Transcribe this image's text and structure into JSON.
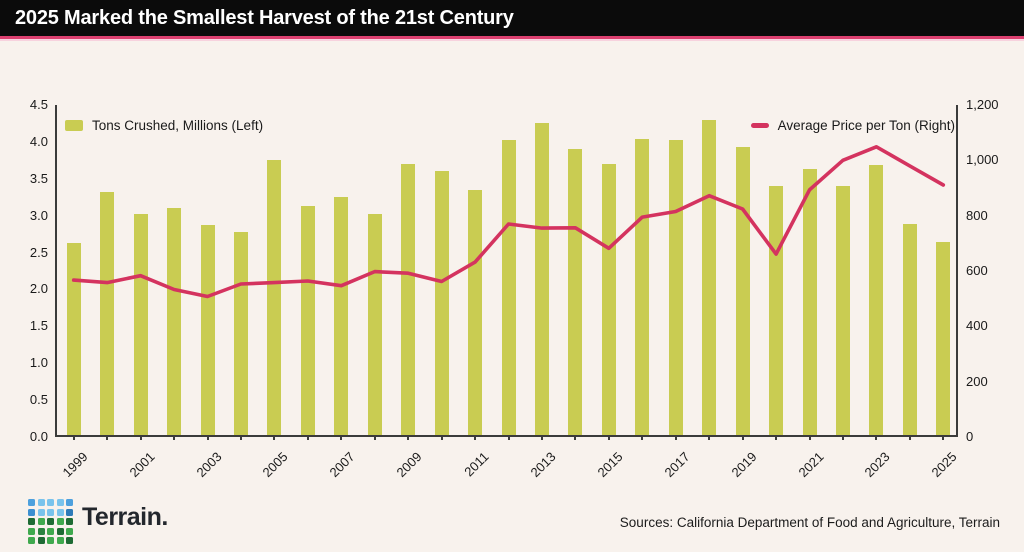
{
  "header": {
    "title": "2025 Marked the Smallest Harvest of the 21st Century"
  },
  "colors": {
    "background": "#f8f2ed",
    "header_bg": "#0b0b0b",
    "accent_pink": "#dd4070",
    "accent_pink_light": "#f7d2de",
    "bar": "#c9cc52",
    "line": "#d4335f",
    "axis": "#3b3b3b"
  },
  "chart_data": {
    "type": "bar",
    "title": "2025 Marked the Smallest Harvest of the 21st Century",
    "categories": [
      1999,
      2000,
      2001,
      2002,
      2003,
      2004,
      2005,
      2006,
      2007,
      2008,
      2009,
      2010,
      2011,
      2012,
      2013,
      2014,
      2015,
      2016,
      2017,
      2018,
      2019,
      2020,
      2021,
      2022,
      2023,
      2024,
      2025
    ],
    "series": [
      {
        "name": "Tons Crushed, Millions (Left)",
        "type": "bar",
        "axis": "left",
        "values": [
          2.6,
          3.3,
          3.0,
          3.08,
          2.85,
          2.75,
          3.73,
          3.11,
          3.22,
          3.0,
          3.67,
          3.58,
          3.32,
          4.0,
          4.23,
          3.88,
          3.67,
          4.01,
          4.0,
          4.27,
          3.9,
          3.38,
          3.61,
          3.37,
          3.66,
          2.86,
          2.62
        ]
      },
      {
        "name": "Average Price per Ton (Right)",
        "type": "line",
        "axis": "right",
        "values": [
          567,
          558,
          583,
          533,
          508,
          553,
          558,
          564,
          547,
          598,
          592,
          562,
          632,
          770,
          755,
          756,
          682,
          795,
          815,
          872,
          824,
          661,
          893,
          1000,
          1049,
          980,
          911
        ]
      }
    ],
    "left_axis": {
      "min": 0,
      "max": 4.5,
      "tick_labels": [
        "4.5",
        "4.0",
        "3.5",
        "3.0",
        "2.5",
        "2.0",
        "1.5",
        "1.0",
        "0.5",
        "0.0"
      ],
      "tick_values": [
        4.5,
        4.0,
        3.5,
        3.0,
        2.5,
        2.0,
        1.5,
        1.0,
        0.5,
        0.0
      ]
    },
    "right_axis": {
      "min": 0,
      "max": 1200,
      "tick_labels": [
        "1,200",
        "1,000",
        "800",
        "600",
        "400",
        "200",
        "0"
      ],
      "tick_values": [
        1200,
        1000,
        800,
        600,
        400,
        200,
        0
      ]
    },
    "x_tick_labels": [
      "1999",
      "2001",
      "2003",
      "2005",
      "2007",
      "2009",
      "2011",
      "2013",
      "2015",
      "2017",
      "2019",
      "2021",
      "2023",
      "2025"
    ],
    "grid": "off",
    "legend_position": "top-left and top-right inside plot"
  },
  "legend": {
    "bar_label": "Tons Crushed, Millions (Left)",
    "line_label": "Average Price per Ton (Right)"
  },
  "footer": {
    "logo_text": "Terrain.",
    "sources": "Sources: California Department of Food and Agriculture, Terrain",
    "logo_grid": [
      [
        "#4da0dd",
        "#79c3ec",
        "#79c3ec",
        "#79c3ec",
        "#4da0dd"
      ],
      [
        "#3c8fd0",
        "#79c3ec",
        "#79c3ec",
        "#79c3ec",
        "#2e7bb8"
      ],
      [
        "#1e6b34",
        "#3fa94e",
        "#1e6b34",
        "#3fa94e",
        "#1e6b34"
      ],
      [
        "#3fa94e",
        "#2a8340",
        "#3fa94e",
        "#1e6b34",
        "#3fa94e"
      ],
      [
        "#3fa94e",
        "#1e6b34",
        "#3fa94e",
        "#3fa94e",
        "#1e6b34"
      ]
    ]
  }
}
